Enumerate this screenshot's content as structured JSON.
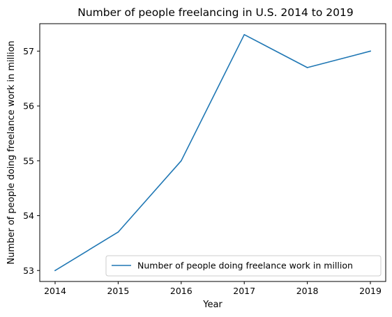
{
  "chart_data": {
    "type": "line",
    "title": "Number of people freelancing in U.S. 2014 to 2019",
    "xlabel": "Year",
    "ylabel": "Number of people doing freelance work in million",
    "x": [
      "2014",
      "2015",
      "2016",
      "2017",
      "2018",
      "2019"
    ],
    "series": [
      {
        "name": "Number of people doing freelance work in million",
        "values": [
          53.0,
          53.7,
          55.0,
          57.3,
          56.7,
          57.0
        ],
        "color": "#1f77b4"
      }
    ],
    "yticks": [
      "53",
      "54",
      "55",
      "56",
      "57"
    ],
    "ylim": [
      52.8,
      57.5
    ],
    "grid": false,
    "legend_position": "lower-right"
  }
}
